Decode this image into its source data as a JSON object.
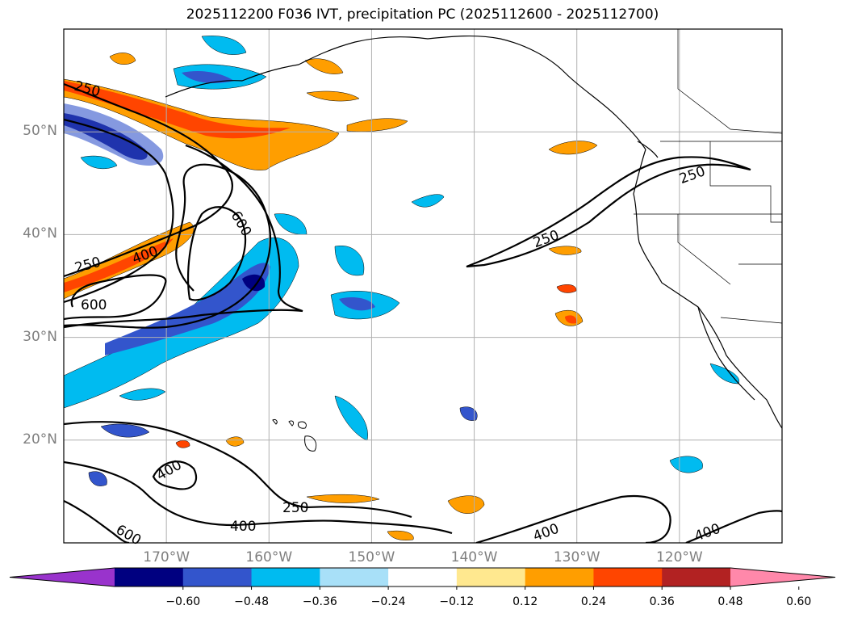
{
  "title": "2025112200 F036 IVT, precipitation PC (2025112600 - 2025112700)",
  "map": {
    "region": "North Pacific / US West Coast",
    "lat_ticks": [
      {
        "value": 50,
        "label": "50°N"
      },
      {
        "value": 40,
        "label": "40°N"
      },
      {
        "value": 30,
        "label": "30°N"
      },
      {
        "value": 20,
        "label": "20°N"
      }
    ],
    "lon_ticks": [
      {
        "value": -170,
        "label": "170°W"
      },
      {
        "value": -160,
        "label": "160°W"
      },
      {
        "value": -150,
        "label": "150°W"
      },
      {
        "value": -140,
        "label": "140°W"
      },
      {
        "value": -130,
        "label": "130°W"
      },
      {
        "value": -120,
        "label": "120°W"
      }
    ],
    "ivt_contour_labels": [
      "250",
      "250",
      "250",
      "250",
      "400",
      "400",
      "400",
      "400",
      "400",
      "600",
      "600",
      "600"
    ],
    "grid_color": "#b0b0b0"
  },
  "colorbar": {
    "bins": [
      {
        "color": "#9933cc"
      },
      {
        "color": "#000080"
      },
      {
        "color": "#3355cc"
      },
      {
        "color": "#00bbf0"
      },
      {
        "color": "#a8e0f8"
      },
      {
        "color": "#ffffff"
      },
      {
        "color": "#ffe88f"
      },
      {
        "color": "#ff9e00"
      },
      {
        "color": "#ff4500"
      },
      {
        "color": "#b22222"
      },
      {
        "color": "#ff88aa"
      }
    ],
    "ticks": [
      "−0.60",
      "−0.48",
      "−0.36",
      "−0.24",
      "−0.12",
      "0.12",
      "0.24",
      "0.36",
      "0.48",
      "0.60"
    ]
  }
}
